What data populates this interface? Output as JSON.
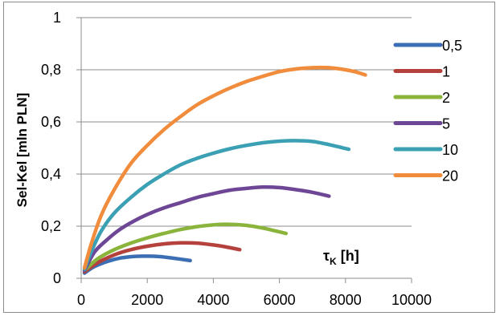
{
  "chart_data": {
    "type": "line",
    "title": "",
    "xlabel": "",
    "ylabel": "Sel-Kel [mln PLN]",
    "annotation": {
      "main": "τ",
      "sub": "K",
      "rest": " [h]"
    },
    "xlim": [
      0,
      10000
    ],
    "ylim": [
      0,
      1
    ],
    "x_ticks": [
      "0",
      "2000",
      "4000",
      "6000",
      "8000",
      "10000"
    ],
    "y_ticks": [
      "0",
      "0,2",
      "0,4",
      "0,6",
      "0,8",
      "1"
    ],
    "grid": "horizontal",
    "legend_position": "right",
    "series": [
      {
        "name": "0,5",
        "color": "#3c6eb4",
        "x": [
          100,
          400,
          800,
          1200,
          1600,
          2000,
          2400,
          2800,
          3300
        ],
        "y": [
          0.02,
          0.045,
          0.065,
          0.078,
          0.084,
          0.085,
          0.083,
          0.077,
          0.068
        ]
      },
      {
        "name": "1",
        "color": "#b4413c",
        "x": [
          100,
          500,
          1000,
          1500,
          2000,
          2500,
          3000,
          3500,
          4000,
          4400,
          4800
        ],
        "y": [
          0.025,
          0.06,
          0.09,
          0.11,
          0.123,
          0.132,
          0.136,
          0.135,
          0.128,
          0.12,
          0.11
        ]
      },
      {
        "name": "2",
        "color": "#8ab43c",
        "x": [
          100,
          500,
          1000,
          1500,
          2000,
          2500,
          3000,
          3500,
          4000,
          4500,
          5000,
          5500,
          6200
        ],
        "y": [
          0.03,
          0.075,
          0.11,
          0.135,
          0.155,
          0.172,
          0.187,
          0.198,
          0.205,
          0.207,
          0.203,
          0.193,
          0.172
        ]
      },
      {
        "name": "5",
        "color": "#6e4696",
        "x": [
          100,
          400,
          800,
          1200,
          1600,
          2000,
          2500,
          3000,
          3500,
          4000,
          4500,
          5000,
          5500,
          6000,
          6500,
          7000,
          7500
        ],
        "y": [
          0.03,
          0.1,
          0.15,
          0.19,
          0.22,
          0.245,
          0.27,
          0.29,
          0.31,
          0.325,
          0.338,
          0.345,
          0.35,
          0.348,
          0.34,
          0.33,
          0.315
        ]
      },
      {
        "name": "10",
        "color": "#3ca0b4",
        "x": [
          100,
          300,
          600,
          1000,
          1500,
          2000,
          2500,
          3000,
          3500,
          4000,
          4500,
          5000,
          5500,
          6000,
          6500,
          7000,
          7500,
          8100
        ],
        "y": [
          0.035,
          0.1,
          0.18,
          0.25,
          0.31,
          0.36,
          0.4,
          0.435,
          0.46,
          0.48,
          0.497,
          0.51,
          0.52,
          0.526,
          0.528,
          0.525,
          0.513,
          0.495
        ]
      },
      {
        "name": "20",
        "color": "#f08c3c",
        "x": [
          100,
          300,
          600,
          1000,
          1500,
          2000,
          2500,
          3000,
          3500,
          4000,
          4500,
          5000,
          5500,
          6000,
          6500,
          7000,
          7500,
          8000,
          8300,
          8600
        ],
        "y": [
          0.04,
          0.13,
          0.24,
          0.34,
          0.44,
          0.51,
          0.57,
          0.62,
          0.665,
          0.7,
          0.73,
          0.755,
          0.775,
          0.793,
          0.803,
          0.808,
          0.808,
          0.8,
          0.792,
          0.78
        ]
      }
    ]
  }
}
